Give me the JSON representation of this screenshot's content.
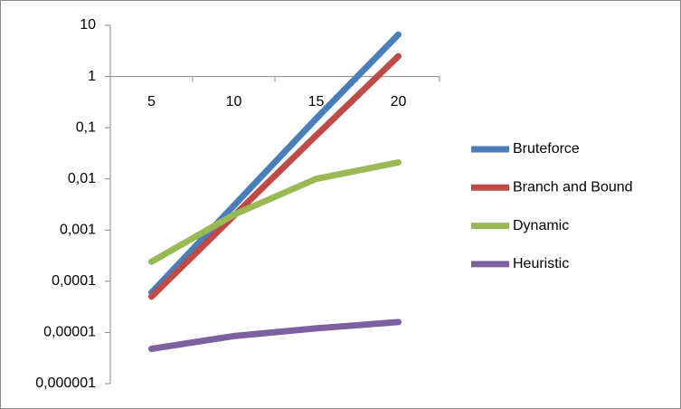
{
  "chart_data": {
    "type": "line",
    "categories": [
      "5",
      "10",
      "15",
      "20"
    ],
    "series": [
      {
        "name": "Bruteforce",
        "color": "#4a7ebb",
        "values": [
          6e-05,
          0.003,
          0.15,
          6.6
        ]
      },
      {
        "name": "Branch and Bound",
        "color": "#be4b48",
        "values": [
          5e-05,
          0.0019,
          0.07,
          2.5
        ]
      },
      {
        "name": "Dynamic",
        "color": "#98b954",
        "values": [
          0.00024,
          0.002,
          0.01,
          0.021
        ]
      },
      {
        "name": "Heuristic",
        "color": "#7d60a0",
        "values": [
          4.8e-06,
          8.5e-06,
          1.2e-05,
          1.6e-05
        ]
      }
    ],
    "yscale": "log",
    "ylim": [
      1e-06,
      10
    ],
    "yticks": [
      10,
      1,
      {
        "value": 0.1,
        "label": "0,1"
      },
      {
        "value": 0.01,
        "label": "0,01"
      },
      {
        "value": 0.001,
        "label": "0,001"
      },
      {
        "value": 0.0001,
        "label": "0,0001"
      },
      {
        "value": 1e-05,
        "label": "0,00001"
      },
      {
        "value": 1e-06,
        "label": "0,000001"
      }
    ],
    "xaxis_crosses": 1,
    "legend": "right"
  }
}
